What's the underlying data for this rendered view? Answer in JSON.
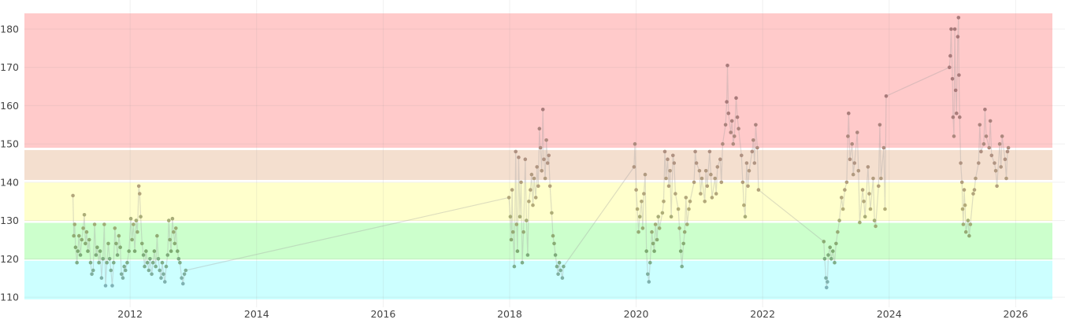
{
  "chart_data": {
    "type": "scatter",
    "mode": "lines+markers",
    "title": "",
    "xlabel": "",
    "ylabel": "",
    "xlim": [
      "2010-05-01",
      "2026-08-01"
    ],
    "ylim": [
      109.4,
      184.1
    ],
    "grid": true,
    "legend": "none",
    "x_ticks": [
      "2012",
      "2014",
      "2016",
      "2018",
      "2020",
      "2022",
      "2024",
      "2026"
    ],
    "y_ticks": [
      "110",
      "120",
      "130",
      "140",
      "150",
      "160",
      "170",
      "180"
    ],
    "bands": [
      {
        "from": 109.4,
        "to": 119.5,
        "color": "#ccffff"
      },
      {
        "from": 119.8,
        "to": 129.4,
        "color": "#ccffcc"
      },
      {
        "from": 129.9,
        "to": 139.9,
        "color": "#ffffcc"
      },
      {
        "from": 140.6,
        "to": 148.4,
        "color": "#f4dfcf"
      },
      {
        "from": 149.0,
        "to": 184.1,
        "color": "#ffcaca"
      }
    ],
    "marker_colors": {
      "low": "#7fb3bd",
      "mid_low": "#7eaa72",
      "mid": "#b3ad78",
      "mid_high": "#b09482",
      "high": "#a87a7a"
    },
    "line_color": "#a0a0a0",
    "points": [
      [
        "2011-02-05",
        136.5
      ],
      [
        "2011-02-10",
        126
      ],
      [
        "2011-02-15",
        129
      ],
      [
        "2011-02-20",
        123
      ],
      [
        "2011-02-28",
        119
      ],
      [
        "2011-03-05",
        122
      ],
      [
        "2011-03-12",
        126
      ],
      [
        "2011-03-20",
        121
      ],
      [
        "2011-03-28",
        125
      ],
      [
        "2011-04-05",
        128
      ],
      [
        "2011-04-12",
        131.5
      ],
      [
        "2011-04-18",
        124
      ],
      [
        "2011-04-25",
        127
      ],
      [
        "2011-05-02",
        122
      ],
      [
        "2011-05-10",
        125
      ],
      [
        "2011-05-18",
        119
      ],
      [
        "2011-05-25",
        116
      ],
      [
        "2011-06-02",
        117
      ],
      [
        "2011-06-10",
        129
      ],
      [
        "2011-06-18",
        121
      ],
      [
        "2011-06-25",
        123
      ],
      [
        "2011-07-05",
        119
      ],
      [
        "2011-07-12",
        122
      ],
      [
        "2011-07-20",
        115
      ],
      [
        "2011-07-28",
        120
      ],
      [
        "2011-08-05",
        129
      ],
      [
        "2011-08-12",
        113
      ],
      [
        "2011-08-20",
        119
      ],
      [
        "2011-08-28",
        124
      ],
      [
        "2011-09-05",
        120
      ],
      [
        "2011-09-12",
        117
      ],
      [
        "2011-09-20",
        113
      ],
      [
        "2011-09-28",
        119
      ],
      [
        "2011-10-05",
        128
      ],
      [
        "2011-10-12",
        124
      ],
      [
        "2011-10-20",
        121
      ],
      [
        "2011-10-28",
        126
      ],
      [
        "2011-11-05",
        123
      ],
      [
        "2011-11-12",
        116
      ],
      [
        "2011-11-20",
        115
      ],
      [
        "2011-11-28",
        118
      ],
      [
        "2011-12-05",
        117
      ],
      [
        "2011-12-15",
        119
      ],
      [
        "2011-12-25",
        122
      ],
      [
        "2012-01-05",
        130.5
      ],
      [
        "2012-01-12",
        125
      ],
      [
        "2012-01-20",
        129
      ],
      [
        "2012-01-28",
        122
      ],
      [
        "2012-02-05",
        130
      ],
      [
        "2012-02-12",
        127
      ],
      [
        "2012-02-20",
        139
      ],
      [
        "2012-02-25",
        137
      ],
      [
        "2012-03-02",
        131
      ],
      [
        "2012-03-10",
        124
      ],
      [
        "2012-03-18",
        121
      ],
      [
        "2012-03-25",
        118
      ],
      [
        "2012-04-02",
        122
      ],
      [
        "2012-04-10",
        119
      ],
      [
        "2012-04-18",
        117
      ],
      [
        "2012-04-25",
        120
      ],
      [
        "2012-05-05",
        116
      ],
      [
        "2012-05-12",
        119
      ],
      [
        "2012-05-20",
        122
      ],
      [
        "2012-05-28",
        118
      ],
      [
        "2012-06-05",
        126
      ],
      [
        "2012-06-12",
        120
      ],
      [
        "2012-06-20",
        117
      ],
      [
        "2012-06-28",
        115
      ],
      [
        "2012-07-05",
        119
      ],
      [
        "2012-07-12",
        116
      ],
      [
        "2012-07-20",
        114
      ],
      [
        "2012-07-28",
        118
      ],
      [
        "2012-08-05",
        121
      ],
      [
        "2012-08-12",
        130
      ],
      [
        "2012-08-18",
        125
      ],
      [
        "2012-08-25",
        122
      ],
      [
        "2012-09-02",
        130.5
      ],
      [
        "2012-09-08",
        127
      ],
      [
        "2012-09-15",
        124
      ],
      [
        "2012-09-22",
        128
      ],
      [
        "2012-10-01",
        122
      ],
      [
        "2012-10-08",
        120
      ],
      [
        "2012-10-15",
        119
      ],
      [
        "2012-10-25",
        115
      ],
      [
        "2012-11-02",
        113.5
      ],
      [
        "2012-11-10",
        116
      ],
      [
        "2012-11-18",
        117
      ],
      [
        "2017-12-28",
        136
      ],
      [
        "2018-01-05",
        131
      ],
      [
        "2018-01-10",
        125
      ],
      [
        "2018-01-15",
        138
      ],
      [
        "2018-01-20",
        127
      ],
      [
        "2018-01-28",
        118
      ],
      [
        "2018-02-05",
        148
      ],
      [
        "2018-02-10",
        129
      ],
      [
        "2018-02-15",
        122
      ],
      [
        "2018-02-22",
        146.5
      ],
      [
        "2018-03-01",
        131
      ],
      [
        "2018-03-08",
        140
      ],
      [
        "2018-03-15",
        119
      ],
      [
        "2018-03-22",
        127
      ],
      [
        "2018-04-01",
        146
      ],
      [
        "2018-04-08",
        130
      ],
      [
        "2018-04-15",
        121
      ],
      [
        "2018-04-22",
        135
      ],
      [
        "2018-05-01",
        138
      ],
      [
        "2018-05-08",
        142
      ],
      [
        "2018-05-15",
        134
      ],
      [
        "2018-05-22",
        141
      ],
      [
        "2018-06-01",
        136
      ],
      [
        "2018-06-08",
        144
      ],
      [
        "2018-06-15",
        139
      ],
      [
        "2018-06-22",
        154
      ],
      [
        "2018-06-28",
        149
      ],
      [
        "2018-07-05",
        143
      ],
      [
        "2018-07-12",
        159
      ],
      [
        "2018-07-18",
        146
      ],
      [
        "2018-07-25",
        141
      ],
      [
        "2018-08-01",
        151
      ],
      [
        "2018-08-08",
        145
      ],
      [
        "2018-08-15",
        147
      ],
      [
        "2018-08-22",
        139
      ],
      [
        "2018-09-01",
        132
      ],
      [
        "2018-09-08",
        126
      ],
      [
        "2018-09-15",
        124
      ],
      [
        "2018-09-22",
        121
      ],
      [
        "2018-10-01",
        118
      ],
      [
        "2018-10-08",
        116
      ],
      [
        "2018-10-15",
        119
      ],
      [
        "2018-10-22",
        117
      ],
      [
        "2018-11-01",
        115
      ],
      [
        "2018-11-08",
        118
      ],
      [
        "2019-12-20",
        144
      ],
      [
        "2019-12-25",
        150
      ],
      [
        "2020-01-01",
        138
      ],
      [
        "2020-01-08",
        133
      ],
      [
        "2020-01-15",
        127
      ],
      [
        "2020-01-22",
        131
      ],
      [
        "2020-02-01",
        135
      ],
      [
        "2020-02-08",
        128
      ],
      [
        "2020-02-15",
        137
      ],
      [
        "2020-02-22",
        142
      ],
      [
        "2020-03-01",
        122
      ],
      [
        "2020-03-08",
        116
      ],
      [
        "2020-03-15",
        114
      ],
      [
        "2020-03-22",
        119
      ],
      [
        "2020-04-01",
        127
      ],
      [
        "2020-04-08",
        124
      ],
      [
        "2020-04-15",
        122
      ],
      [
        "2020-04-22",
        129
      ],
      [
        "2020-05-01",
        125
      ],
      [
        "2020-05-08",
        131
      ],
      [
        "2020-05-15",
        128
      ],
      [
        "2020-06-01",
        132
      ],
      [
        "2020-06-08",
        135
      ],
      [
        "2020-06-15",
        148
      ],
      [
        "2020-06-22",
        141
      ],
      [
        "2020-07-01",
        146
      ],
      [
        "2020-07-08",
        139
      ],
      [
        "2020-07-15",
        143
      ],
      [
        "2020-07-22",
        131
      ],
      [
        "2020-08-01",
        147
      ],
      [
        "2020-08-08",
        145
      ],
      [
        "2020-08-15",
        137
      ],
      [
        "2020-09-01",
        133
      ],
      [
        "2020-09-08",
        128
      ],
      [
        "2020-09-15",
        122
      ],
      [
        "2020-09-22",
        118
      ],
      [
        "2020-10-01",
        124
      ],
      [
        "2020-10-08",
        127
      ],
      [
        "2020-10-15",
        136
      ],
      [
        "2020-10-22",
        129
      ],
      [
        "2020-11-01",
        133
      ],
      [
        "2020-11-08",
        135
      ],
      [
        "2020-12-01",
        140
      ],
      [
        "2020-12-08",
        148
      ],
      [
        "2020-12-15",
        145
      ],
      [
        "2021-01-01",
        143
      ],
      [
        "2021-01-08",
        137
      ],
      [
        "2021-01-15",
        141
      ],
      [
        "2021-02-01",
        135
      ],
      [
        "2021-02-08",
        143
      ],
      [
        "2021-02-15",
        139
      ],
      [
        "2021-03-01",
        148
      ],
      [
        "2021-03-08",
        142
      ],
      [
        "2021-03-15",
        136
      ],
      [
        "2021-04-01",
        141
      ],
      [
        "2021-04-08",
        137
      ],
      [
        "2021-04-15",
        144
      ],
      [
        "2021-05-01",
        146
      ],
      [
        "2021-05-08",
        140
      ],
      [
        "2021-05-15",
        150
      ],
      [
        "2021-06-01",
        155
      ],
      [
        "2021-06-08",
        161
      ],
      [
        "2021-06-12",
        170.5
      ],
      [
        "2021-06-18",
        158
      ],
      [
        "2021-07-01",
        153
      ],
      [
        "2021-07-08",
        156
      ],
      [
        "2021-07-15",
        150
      ],
      [
        "2021-07-22",
        152
      ],
      [
        "2021-08-01",
        162
      ],
      [
        "2021-08-08",
        157
      ],
      [
        "2021-08-15",
        154
      ],
      [
        "2021-09-01",
        147
      ],
      [
        "2021-09-08",
        140
      ],
      [
        "2021-09-15",
        134
      ],
      [
        "2021-09-22",
        131
      ],
      [
        "2021-10-01",
        145
      ],
      [
        "2021-10-08",
        139
      ],
      [
        "2021-10-15",
        143
      ],
      [
        "2021-11-01",
        148
      ],
      [
        "2021-11-08",
        151
      ],
      [
        "2021-11-15",
        145
      ],
      [
        "2021-11-22",
        155
      ],
      [
        "2021-12-01",
        149
      ],
      [
        "2021-12-08",
        138
      ],
      [
        "2022-12-20",
        124.5
      ],
      [
        "2022-12-25",
        120
      ],
      [
        "2023-01-01",
        115
      ],
      [
        "2023-01-05",
        112.5
      ],
      [
        "2023-01-10",
        114
      ],
      [
        "2023-01-15",
        121
      ],
      [
        "2023-01-25",
        123
      ],
      [
        "2023-02-01",
        120
      ],
      [
        "2023-02-10",
        122
      ],
      [
        "2023-02-20",
        119
      ],
      [
        "2023-03-01",
        124
      ],
      [
        "2023-03-10",
        127
      ],
      [
        "2023-03-20",
        130
      ],
      [
        "2023-04-01",
        136
      ],
      [
        "2023-04-10",
        133
      ],
      [
        "2023-04-20",
        138
      ],
      [
        "2023-05-01",
        140
      ],
      [
        "2023-05-08",
        152
      ],
      [
        "2023-05-12",
        158
      ],
      [
        "2023-05-20",
        146
      ],
      [
        "2023-06-01",
        150
      ],
      [
        "2023-06-08",
        142
      ],
      [
        "2023-06-15",
        145
      ],
      [
        "2023-07-01",
        153
      ],
      [
        "2023-07-08",
        143
      ],
      [
        "2023-07-15",
        129.5
      ],
      [
        "2023-08-01",
        138
      ],
      [
        "2023-08-08",
        135
      ],
      [
        "2023-08-15",
        131
      ],
      [
        "2023-09-01",
        144
      ],
      [
        "2023-09-08",
        137
      ],
      [
        "2023-09-15",
        133
      ],
      [
        "2023-10-01",
        141
      ],
      [
        "2023-10-08",
        130
      ],
      [
        "2023-10-15",
        128.5
      ],
      [
        "2023-11-01",
        139
      ],
      [
        "2023-11-08",
        155
      ],
      [
        "2023-11-15",
        141
      ],
      [
        "2023-12-01",
        149
      ],
      [
        "2023-12-08",
        133
      ],
      [
        "2023-12-15",
        162.5
      ],
      [
        "2024-12-15",
        170
      ],
      [
        "2024-12-20",
        173
      ],
      [
        "2024-12-25",
        180
      ],
      [
        "2025-01-01",
        167
      ],
      [
        "2025-01-05",
        157
      ],
      [
        "2025-01-10",
        152
      ],
      [
        "2025-01-15",
        180
      ],
      [
        "2025-01-20",
        164
      ],
      [
        "2025-01-25",
        158
      ],
      [
        "2025-02-01",
        178
      ],
      [
        "2025-02-05",
        183
      ],
      [
        "2025-02-08",
        168
      ],
      [
        "2025-02-12",
        157
      ],
      [
        "2025-02-18",
        145
      ],
      [
        "2025-02-25",
        140
      ],
      [
        "2025-03-01",
        133
      ],
      [
        "2025-03-05",
        129
      ],
      [
        "2025-03-10",
        138
      ],
      [
        "2025-03-15",
        134
      ],
      [
        "2025-03-20",
        127
      ],
      [
        "2025-04-01",
        130
      ],
      [
        "2025-04-08",
        126
      ],
      [
        "2025-04-15",
        129
      ],
      [
        "2025-05-01",
        137
      ],
      [
        "2025-05-08",
        138
      ],
      [
        "2025-05-15",
        141
      ],
      [
        "2025-06-01",
        145
      ],
      [
        "2025-06-08",
        155
      ],
      [
        "2025-06-15",
        148
      ],
      [
        "2025-07-01",
        150
      ],
      [
        "2025-07-08",
        159
      ],
      [
        "2025-07-15",
        152
      ],
      [
        "2025-08-01",
        149
      ],
      [
        "2025-08-08",
        156
      ],
      [
        "2025-08-15",
        147
      ],
      [
        "2025-09-01",
        145
      ],
      [
        "2025-09-08",
        143
      ],
      [
        "2025-09-15",
        139
      ],
      [
        "2025-10-01",
        150
      ],
      [
        "2025-10-08",
        144
      ],
      [
        "2025-10-15",
        152
      ],
      [
        "2025-11-01",
        146
      ],
      [
        "2025-11-08",
        141
      ],
      [
        "2025-11-15",
        148
      ],
      [
        "2025-11-20",
        149
      ]
    ]
  }
}
